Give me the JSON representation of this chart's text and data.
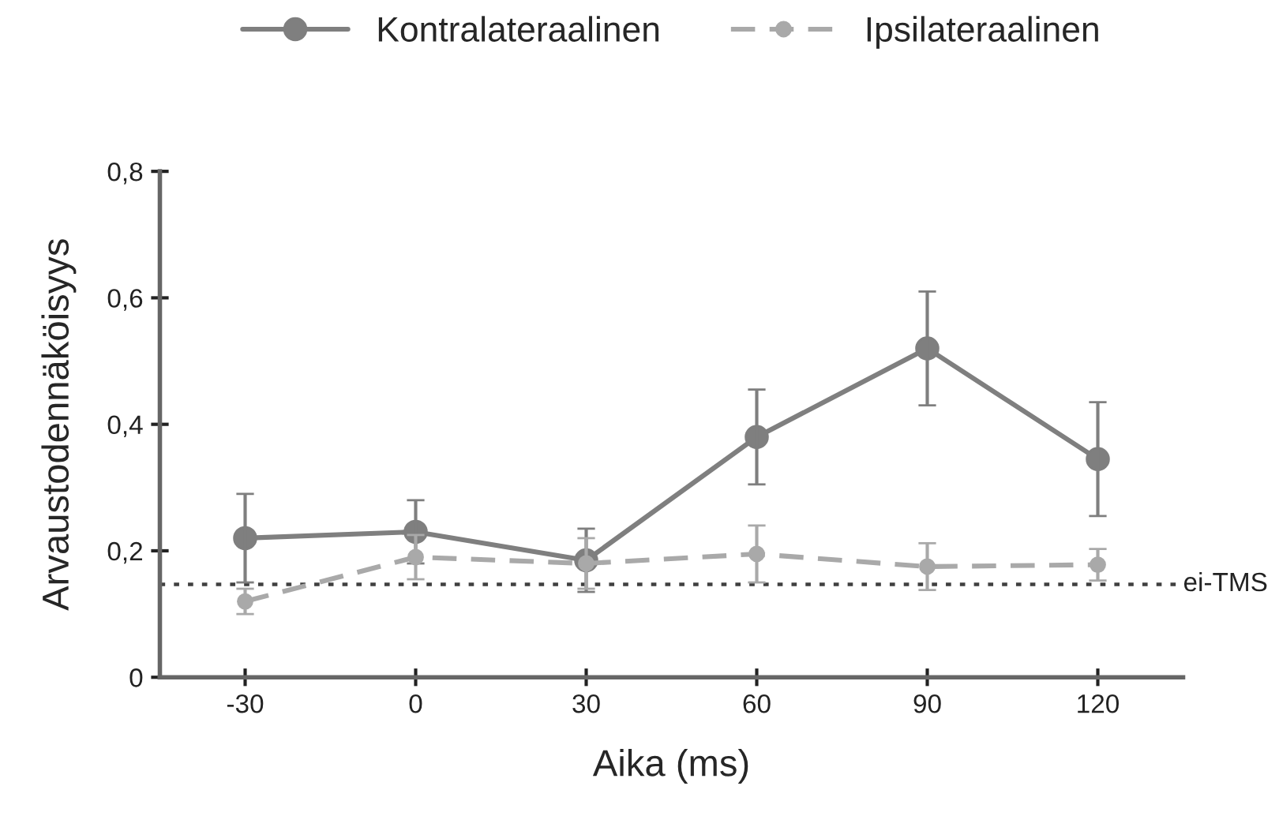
{
  "chart_data": {
    "type": "line",
    "xlabel": "Aika (ms)",
    "ylabel": "Arvaustodennäköisyys",
    "x": [
      -30,
      0,
      30,
      60,
      90,
      120
    ],
    "xlim": [
      -45,
      135
    ],
    "xticks": [
      -30,
      0,
      30,
      60,
      90,
      120
    ],
    "ylim": [
      0,
      0.8
    ],
    "yticks": [
      {
        "value": 0,
        "label": "0"
      },
      {
        "value": 0.2,
        "label": "0,2"
      },
      {
        "value": 0.4,
        "label": "0,4"
      },
      {
        "value": 0.6,
        "label": "0,6"
      },
      {
        "value": 0.8,
        "label": "0,8"
      }
    ],
    "series": [
      {
        "name": "Kontralateraalinen",
        "color": "#7f7f7f",
        "line_style": "solid",
        "values": [
          0.22,
          0.23,
          0.185,
          0.38,
          0.52,
          0.345
        ],
        "errors": [
          0.07,
          0.05,
          0.05,
          0.075,
          0.09,
          0.09
        ]
      },
      {
        "name": "Ipsilateraalinen",
        "color": "#a9a9a9",
        "line_style": "dashed",
        "values": [
          0.12,
          0.19,
          0.18,
          0.195,
          0.175,
          0.178
        ],
        "errors": [
          0.02,
          0.035,
          0.04,
          0.045,
          0.037,
          0.025
        ]
      }
    ],
    "ref_lines": [
      {
        "axis": "y",
        "value": 0.147,
        "label": "ei-TMS",
        "color": "#404040",
        "line_style": "dotted"
      }
    ],
    "marker": "circle",
    "grid": false,
    "legend": "top"
  }
}
